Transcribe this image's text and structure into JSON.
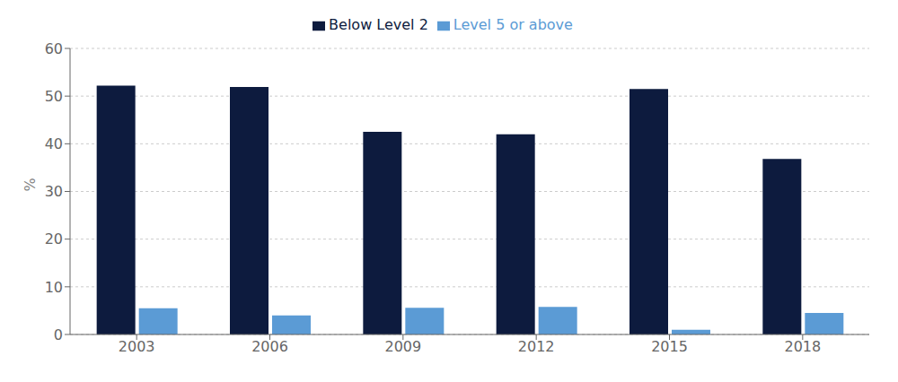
{
  "chart_data": {
    "type": "bar",
    "categories": [
      "2003",
      "2006",
      "2009",
      "2012",
      "2015",
      "2018"
    ],
    "series": [
      {
        "name": "Below Level 2",
        "color": "#0d1b3e",
        "values": [
          52.2,
          51.9,
          42.5,
          42.0,
          51.5,
          36.8
        ]
      },
      {
        "name": "Level 5 or above",
        "color": "#5b9bd5",
        "values": [
          5.5,
          4.0,
          5.6,
          5.8,
          1.0,
          4.5
        ]
      }
    ],
    "ylabel": "%",
    "ylim": [
      0,
      60
    ],
    "yticks": [
      0,
      10,
      20,
      30,
      40,
      50,
      60
    ],
    "grid": true,
    "legend": "top"
  }
}
